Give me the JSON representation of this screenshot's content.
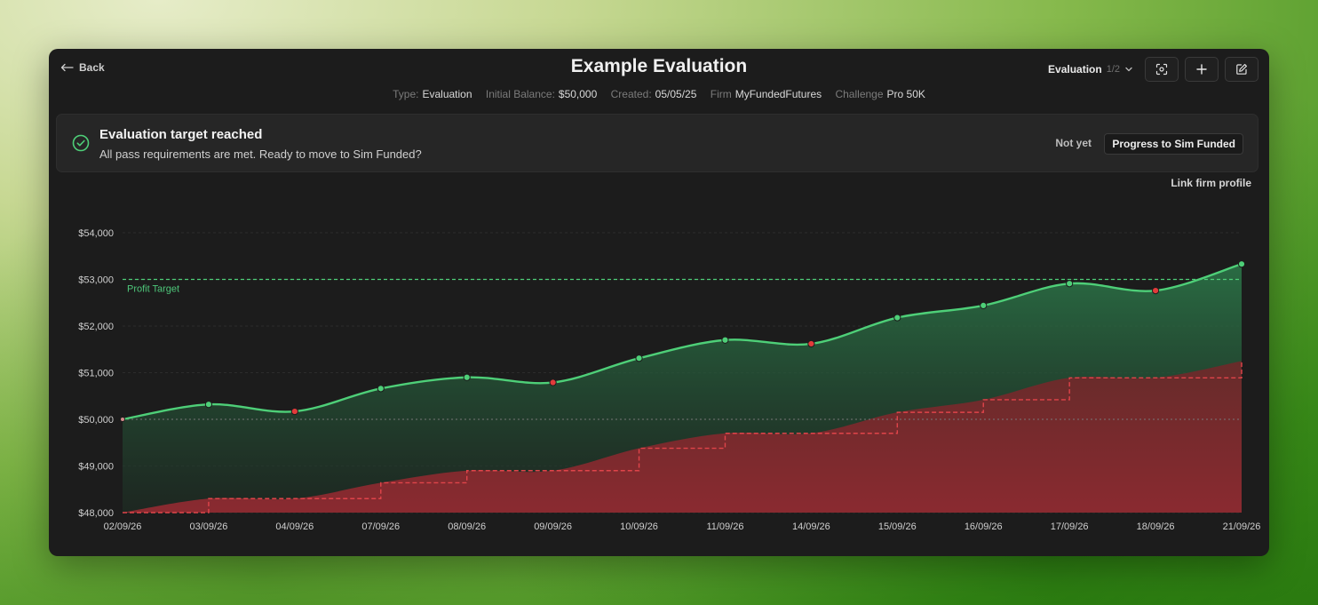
{
  "header": {
    "back_label": "Back",
    "title": "Example Evaluation",
    "selector": {
      "label": "Evaluation",
      "count": "1/2"
    }
  },
  "meta": {
    "type_key": "Type:",
    "type_val": "Evaluation",
    "balance_key": "Initial Balance:",
    "balance_val": "$50,000",
    "created_key": "Created:",
    "created_val": "05/05/25",
    "firm_key": "Firm",
    "firm_val": "MyFundedFutures",
    "challenge_key": "Challenge",
    "challenge_val": "Pro 50K"
  },
  "banner": {
    "title": "Evaluation target reached",
    "subtitle": "All pass requirements are met. Ready to move to Sim Funded?",
    "not_yet": "Not yet",
    "progress_label": "Progress to Sim Funded"
  },
  "link_firm_profile": "Link firm profile",
  "icons": {
    "back": "arrow-left-icon",
    "selector": "chevron-down-icon",
    "scan": "scan-icon",
    "add": "plus-icon",
    "edit": "edit-icon",
    "banner": "check-circle-icon"
  },
  "colors": {
    "equity_line": "#4ecf78",
    "up_day": "#4ecf78",
    "down_day": "#e23b3b",
    "drawdown": "#e0444a",
    "profit_target": "#4ecf78",
    "panel": "#1c1c1c"
  },
  "chart_data": {
    "type": "line",
    "x": [
      "02/09/26",
      "03/09/26",
      "04/09/26",
      "07/09/26",
      "08/09/26",
      "09/09/26",
      "10/09/26",
      "11/09/26",
      "14/09/26",
      "15/09/26",
      "16/09/26",
      "17/09/26",
      "18/09/26",
      "21/09/26"
    ],
    "ylim": [
      48000,
      54000
    ],
    "yticks": [
      "$48,000",
      "$49,000",
      "$50,000",
      "$51,000",
      "$52,000",
      "$53,000",
      "$54,000"
    ],
    "grid": true,
    "series": [
      {
        "values": [
          50000,
          50320,
          50170,
          50660,
          50900,
          50790,
          51310,
          51700,
          51620,
          52180,
          52440,
          52910,
          52760,
          53330
        ]
      },
      {
        "values": [
          48000,
          48300,
          48300,
          48640,
          48900,
          48900,
          49380,
          49700,
          49700,
          50150,
          50420,
          50890,
          50890,
          51250
        ]
      }
    ],
    "reference_lines": [
      {
        "label": "Profit Target",
        "value": 53000
      },
      {
        "label": "",
        "value": 50000
      }
    ]
  }
}
